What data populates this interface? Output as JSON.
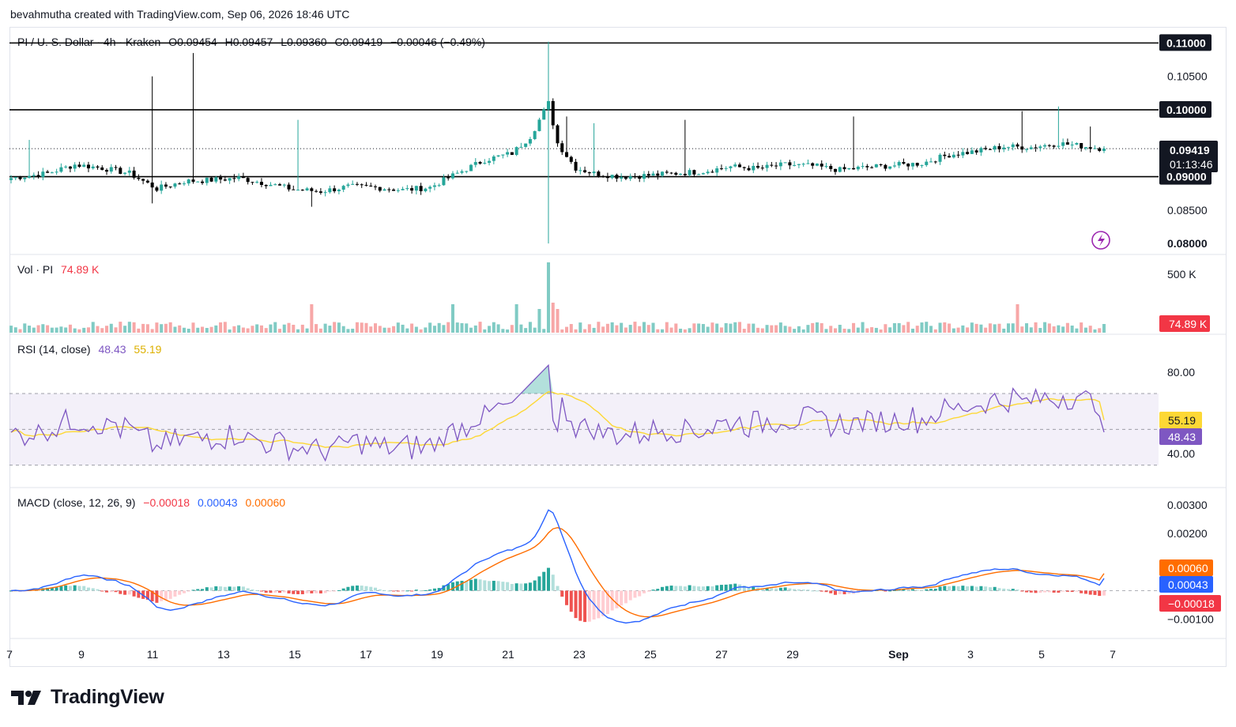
{
  "header": {
    "credit": "bevahmutha created with TradingView.com, Sep 06, 2026 18:46 UTC"
  },
  "main_legend": {
    "symbol": "PI / U. S. Dollar · 4h · Kraken",
    "open": "O0.09454",
    "high": "H0.09457",
    "low": "L0.09360",
    "close": "C0.09419",
    "change": "−0.00046 (−0.49%)"
  },
  "volume_legend": {
    "label": "Vol · PI",
    "value": "74.89 K"
  },
  "rsi_legend": {
    "label": "RSI (14, close)",
    "rsi": "48.43",
    "ma": "55.19"
  },
  "macd_legend": {
    "label": "MACD (close, 12, 26, 9)",
    "hist": "−0.00018",
    "macd": "0.00043",
    "signal": "0.00060"
  },
  "colors": {
    "up": "#26a69a",
    "down": "#000000",
    "up_vol": "#80cbc4",
    "down_vol": "#f7a7a7",
    "rsi": "#7e57c2",
    "rsi_ma": "#fdd835",
    "macd": "#2962ff",
    "signal": "#ff6d00",
    "hist_up": "#26a69a",
    "hist_down": "#ef5350"
  },
  "chart_data": [
    {
      "type": "candlestick",
      "title": "PI / U. S. Dollar · 4h · Kraken",
      "x_ticks": [
        "7",
        "9",
        "11",
        "13",
        "15",
        "17",
        "19",
        "21",
        "23",
        "25",
        "27",
        "29",
        "Sep",
        "3",
        "5",
        "7"
      ],
      "y_ticks": [
        "0.11000",
        "0.10500",
        "0.10000",
        "0.09500",
        "0.09000",
        "0.08500",
        "0.08000"
      ],
      "ylim": [
        0.0786,
        0.1117
      ],
      "horizontal_levels": [
        0.11,
        0.1,
        0.09
      ],
      "last_price": "0.09419",
      "countdown": "01:13:46",
      "level_labels": [
        "0.11000",
        "0.10000",
        "0.09000"
      ],
      "series_close_anchors": [
        [
          0,
          0.0898
        ],
        [
          8,
          0.0905
        ],
        [
          14,
          0.0918
        ],
        [
          20,
          0.0913
        ],
        [
          26,
          0.0905
        ],
        [
          32,
          0.0882
        ],
        [
          38,
          0.0893
        ],
        [
          44,
          0.0895
        ],
        [
          50,
          0.0898
        ],
        [
          56,
          0.089
        ],
        [
          62,
          0.0881
        ],
        [
          68,
          0.0878
        ],
        [
          74,
          0.0885
        ],
        [
          80,
          0.0884
        ],
        [
          86,
          0.088
        ],
        [
          92,
          0.0884
        ],
        [
          98,
          0.0905
        ],
        [
          104,
          0.0925
        ],
        [
          110,
          0.0935
        ],
        [
          114,
          0.096
        ],
        [
          118,
          0.101
        ],
        [
          120,
          0.095
        ],
        [
          124,
          0.0913
        ],
        [
          128,
          0.0905
        ],
        [
          134,
          0.09
        ],
        [
          140,
          0.0902
        ],
        [
          146,
          0.0905
        ],
        [
          152,
          0.0908
        ],
        [
          158,
          0.0915
        ],
        [
          164,
          0.0912
        ],
        [
          170,
          0.0918
        ],
        [
          176,
          0.0916
        ],
        [
          182,
          0.091
        ],
        [
          188,
          0.0914
        ],
        [
          194,
          0.0917
        ],
        [
          200,
          0.092
        ],
        [
          206,
          0.0933
        ],
        [
          212,
          0.0938
        ],
        [
          218,
          0.0945
        ],
        [
          224,
          0.0944
        ],
        [
          230,
          0.095
        ],
        [
          236,
          0.0945
        ],
        [
          240,
          0.0942
        ]
      ]
    },
    {
      "type": "bar",
      "title": "Vol · PI",
      "y_ticks": [
        "500 K"
      ],
      "last_value": "74.89 K"
    },
    {
      "type": "line",
      "title": "RSI (14, close)",
      "y_ticks": [
        "80.00",
        "40.00"
      ],
      "band": [
        30,
        70
      ],
      "series": [
        {
          "name": "RSI",
          "last": "48.43"
        },
        {
          "name": "RSI-based MA",
          "last": "55.19"
        }
      ]
    },
    {
      "type": "line",
      "title": "MACD (close, 12, 26, 9)",
      "y_ticks": [
        "0.00300",
        "0.00200",
        "−0.00100"
      ],
      "ylim": [
        -0.00145,
        0.0033
      ],
      "series": [
        {
          "name": "MACD",
          "last": "0.00043"
        },
        {
          "name": "Signal",
          "last": "0.00060"
        },
        {
          "name": "Histogram",
          "last": "−0.00018"
        }
      ]
    }
  ],
  "footer": {
    "brand": "TradingView"
  }
}
